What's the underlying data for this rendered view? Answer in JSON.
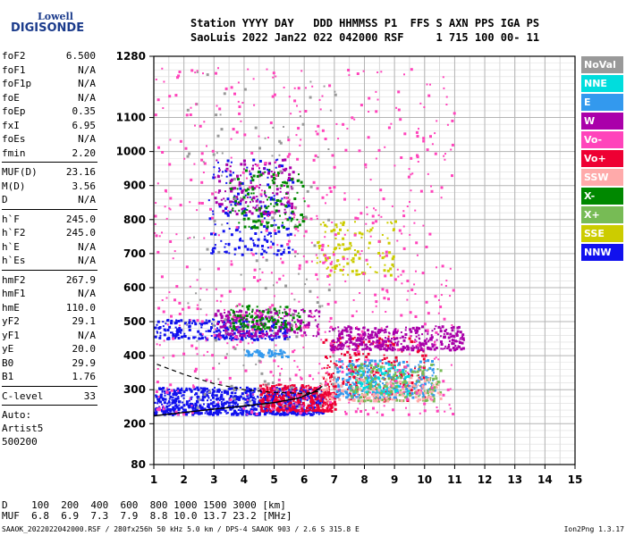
{
  "logo": {
    "line1": "Lowell",
    "line2": "DIGISONDE"
  },
  "header": {
    "line1": "Station YYYY DAY   DDD HHMMSS P1  FFS S AXN PPS IGA PS",
    "line2": "SaoLuis 2022 Jan22 022 042000 RSF     1 715 100 00- 11"
  },
  "params": [
    {
      "k": "foF2",
      "v": "6.500"
    },
    {
      "k": "foF1",
      "v": "N/A"
    },
    {
      "k": "foF1p",
      "v": "N/A"
    },
    {
      "k": "foE",
      "v": "N/A"
    },
    {
      "k": "foEp",
      "v": "0.35"
    },
    {
      "k": "fxI",
      "v": "6.95"
    },
    {
      "k": "foEs",
      "v": "N/A"
    },
    {
      "k": "fmin",
      "v": "2.20"
    },
    {
      "sep": true
    },
    {
      "k": "MUF(D)",
      "v": "23.16"
    },
    {
      "k": "M(D)",
      "v": "3.56"
    },
    {
      "k": "D",
      "v": "N/A"
    },
    {
      "sep": true
    },
    {
      "k": "h`F",
      "v": "245.0"
    },
    {
      "k": "h`F2",
      "v": "245.0"
    },
    {
      "k": "h`E",
      "v": "N/A"
    },
    {
      "k": "h`Es",
      "v": "N/A"
    },
    {
      "sep": true
    },
    {
      "k": "hmF2",
      "v": "267.9"
    },
    {
      "k": "hmF1",
      "v": "N/A"
    },
    {
      "k": "hmE",
      "v": "110.0"
    },
    {
      "k": "yF2",
      "v": "29.1"
    },
    {
      "k": "yF1",
      "v": "N/A"
    },
    {
      "k": "yE",
      "v": "20.0"
    },
    {
      "k": "B0",
      "v": "29.9"
    },
    {
      "k": "B1",
      "v": "1.76"
    },
    {
      "sep": true
    },
    {
      "k": "C-level",
      "v": "33"
    },
    {
      "sep": true
    }
  ],
  "auto": [
    "Auto:",
    "Artist5",
    "500200"
  ],
  "legend": [
    {
      "label": "NoVal",
      "color": "#999999"
    },
    {
      "label": "NNE",
      "color": "#00dddd"
    },
    {
      "label": "E",
      "color": "#3399ee"
    },
    {
      "label": "W",
      "color": "#aa00aa"
    },
    {
      "label": "Vo-",
      "color": "#ff44bb"
    },
    {
      "label": "Vo+",
      "color": "#ee0033"
    },
    {
      "label": "SSW",
      "color": "#ffaaaa"
    },
    {
      "label": "X-",
      "color": "#008800"
    },
    {
      "label": "X+",
      "color": "#77bb55"
    },
    {
      "label": "SSE",
      "color": "#cccc00"
    },
    {
      "label": "NNW",
      "color": "#1111ee"
    }
  ],
  "muf_table": {
    "d_label": "D",
    "d_values": "100  200  400  600  800 1000 1500 3000 [km]",
    "muf_label": "MUF",
    "muf_values": "6.8  6.9  7.3  7.9  8.8 10.0 13.7 23.2 [MHz]"
  },
  "footer": "SAAOK_2022022042000.RSF / 280fx256h 50 kHz 5.0 km / DPS-4 SAAOK 903 / 2.6 S 315.8 E",
  "footer_right": "Ion2Png 1.3.17",
  "chart_data": {
    "type": "scatter",
    "title": "",
    "xlabel": "",
    "ylabel": "",
    "xlim": [
      1,
      15
    ],
    "ylim": [
      80,
      1280
    ],
    "x_ticks": [
      "1",
      "2",
      "3",
      "4",
      "5",
      "6",
      "7",
      "8",
      "9",
      "10",
      "11",
      "12",
      "13",
      "14",
      "15"
    ],
    "y_ticks": [
      "80",
      "200",
      "300",
      "400",
      "500",
      "600",
      "700",
      "800",
      "900",
      "1000",
      "1100",
      "1280"
    ],
    "y_tick_values": [
      80,
      200,
      300,
      400,
      500,
      600,
      700,
      800,
      900,
      1000,
      1100,
      1280
    ],
    "grid": true,
    "legend_position": "right",
    "trace_curve_solid": [
      [
        1,
        223
      ],
      [
        2,
        233
      ],
      [
        3,
        243
      ],
      [
        4,
        252
      ],
      [
        5,
        262
      ],
      [
        5.8,
        275
      ],
      [
        6.3,
        292
      ],
      [
        6.6,
        310
      ]
    ],
    "trace_curve_dashed": [
      [
        1.1,
        375
      ],
      [
        2,
        345
      ],
      [
        3,
        318
      ],
      [
        4,
        300
      ],
      [
        5,
        292
      ],
      [
        6,
        289
      ],
      [
        6.5,
        295
      ]
    ],
    "echo_clusters": [
      {
        "series": "NNW",
        "color": "#1111ee",
        "x": [
          1,
          6.6
        ],
        "y": [
          230,
          310
        ],
        "n": 900
      },
      {
        "series": "NNW",
        "color": "#1111ee",
        "x": [
          1,
          5.5
        ],
        "y": [
          450,
          510
        ],
        "n": 260
      },
      {
        "series": "NNW",
        "color": "#1111ee",
        "x": [
          2.8,
          5.6
        ],
        "y": [
          700,
          980
        ],
        "n": 180
      },
      {
        "series": "Vo+",
        "color": "#ee0033",
        "x": [
          4.5,
          7
        ],
        "y": [
          240,
          320
        ],
        "n": 350
      },
      {
        "series": "Vo+",
        "color": "#ee0033",
        "x": [
          6.6,
          10
        ],
        "y": [
          270,
          460
        ],
        "n": 260
      },
      {
        "series": "W",
        "color": "#aa00aa",
        "x": [
          6.8,
          11.3
        ],
        "y": [
          420,
          490
        ],
        "n": 380
      },
      {
        "series": "W",
        "color": "#aa00aa",
        "x": [
          3,
          6.5
        ],
        "y": [
          460,
          540
        ],
        "n": 220
      },
      {
        "series": "W",
        "color": "#aa00aa",
        "x": [
          3,
          5.6
        ],
        "y": [
          820,
          980
        ],
        "n": 150
      },
      {
        "series": "E",
        "color": "#3399ee",
        "x": [
          7,
          10.3
        ],
        "y": [
          280,
          390
        ],
        "n": 260
      },
      {
        "series": "E",
        "color": "#3399ee",
        "x": [
          4,
          5.5
        ],
        "y": [
          400,
          420
        ],
        "n": 50
      },
      {
        "series": "NNE",
        "color": "#00dddd",
        "x": [
          7.5,
          9.5
        ],
        "y": [
          290,
          380
        ],
        "n": 100
      },
      {
        "series": "X+",
        "color": "#77bb55",
        "x": [
          7.5,
          10.5
        ],
        "y": [
          270,
          380
        ],
        "n": 180
      },
      {
        "series": "X-",
        "color": "#008800",
        "x": [
          3.5,
          6
        ],
        "y": [
          480,
          550
        ],
        "n": 120
      },
      {
        "series": "X-",
        "color": "#008800",
        "x": [
          3.5,
          6
        ],
        "y": [
          780,
          950
        ],
        "n": 120
      },
      {
        "series": "SSE",
        "color": "#cccc00",
        "x": [
          6.4,
          9
        ],
        "y": [
          640,
          800
        ],
        "n": 120
      },
      {
        "series": "Vo-",
        "color": "#ff44bb",
        "x": [
          1,
          11
        ],
        "y": [
          230,
          1250
        ],
        "n": 700
      },
      {
        "series": "SSW",
        "color": "#ffaaaa",
        "x": [
          6.5,
          10.5
        ],
        "y": [
          270,
          340
        ],
        "n": 120
      },
      {
        "series": "NoVal",
        "color": "#999999",
        "x": [
          2,
          7
        ],
        "y": [
          250,
          1250
        ],
        "n": 150
      }
    ]
  }
}
